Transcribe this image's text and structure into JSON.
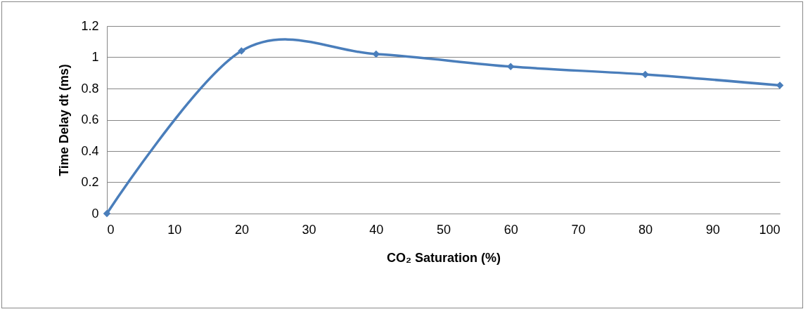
{
  "chart_data": {
    "type": "line",
    "xlabel": "CO₂ Saturation (%)",
    "ylabel": "Time Delay dt (ms)",
    "x": [
      0,
      20,
      40,
      60,
      80,
      100
    ],
    "series": [
      {
        "color": "#4a7ebb",
        "values": [
          0,
          1.04,
          1.02,
          0.94,
          0.89,
          0.82
        ]
      }
    ],
    "xlim": [
      0,
      100
    ],
    "xticks": [
      0,
      10,
      20,
      30,
      40,
      50,
      60,
      70,
      80,
      90,
      100
    ],
    "ylim": [
      0,
      1.2
    ],
    "yticks": [
      0,
      0.2,
      0.4,
      0.6,
      0.8,
      1,
      1.2
    ],
    "grid": "y",
    "legend": false,
    "marker": "diamond",
    "line_style": "solid"
  }
}
